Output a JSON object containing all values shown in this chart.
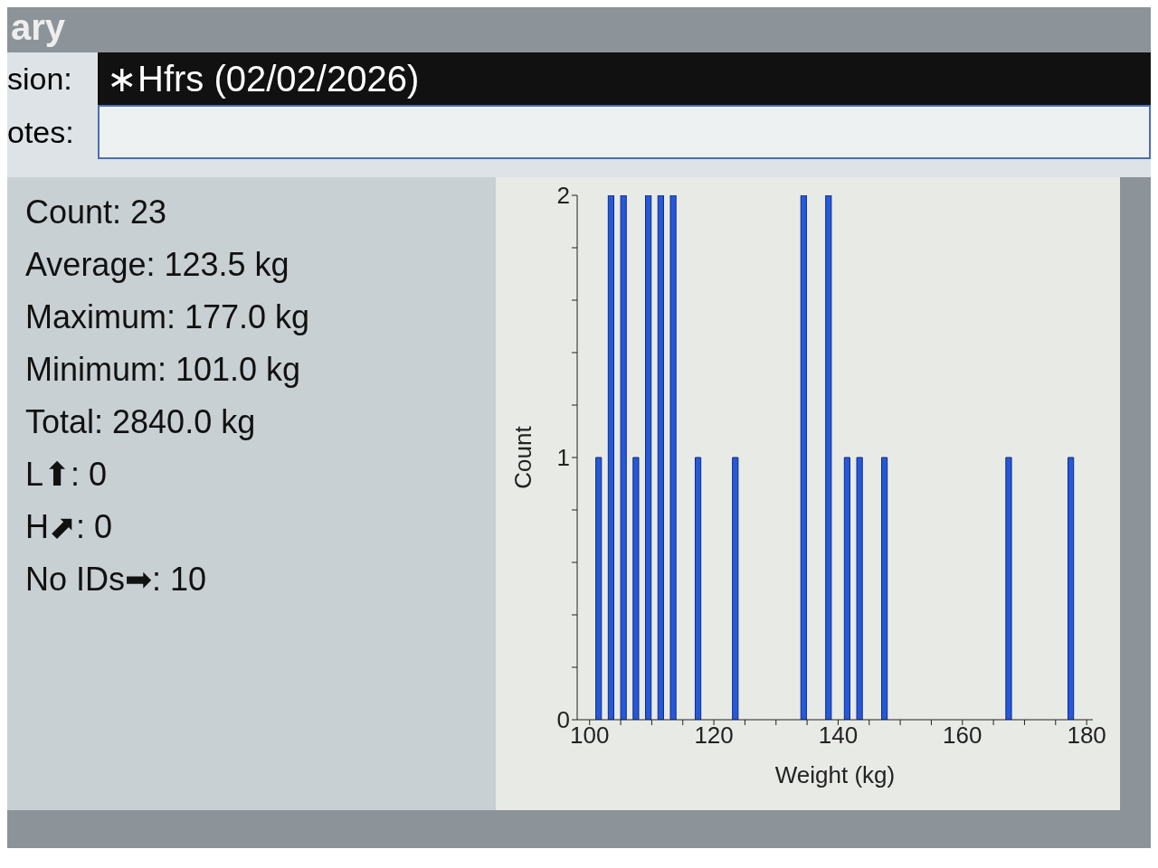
{
  "chart_data": {
    "type": "histogram",
    "title": "∗Hfrs (02/02/2026)",
    "xlabel": "Weight (kg)",
    "ylabel": "Count",
    "annotations": [
      "ary",
      "sion:",
      "otes:",
      "Count: 23",
      "Average: 123.5 kg",
      "Maximum: 177.0 kg",
      "Minimum: 101.0 kg",
      "Total: 2840.0 kg",
      "L⬆: 0",
      "H⬈: 0",
      "No IDs➡: 10"
    ],
    "bins": [
      100,
      101,
      102,
      103,
      104,
      105,
      106,
      107,
      108,
      109,
      110,
      111,
      112,
      113,
      114,
      115,
      116,
      117,
      118,
      119,
      120,
      121,
      122,
      123,
      124,
      125,
      126,
      127,
      128,
      129,
      130,
      131,
      132,
      133,
      134,
      135,
      136,
      137,
      138,
      139,
      140,
      141,
      142,
      143,
      144,
      145,
      146,
      147,
      148,
      149,
      150,
      151,
      152,
      153,
      154,
      155,
      156,
      157,
      158,
      159,
      160,
      161,
      162,
      163,
      164,
      165,
      166,
      167,
      168,
      169,
      170,
      171,
      172,
      173,
      174,
      175,
      176,
      177,
      178,
      179,
      180
    ],
    "values": [
      0,
      1,
      0,
      2,
      0,
      2,
      0,
      1,
      0,
      2,
      0,
      2,
      0,
      2,
      0,
      0,
      0,
      1,
      0,
      0,
      0,
      0,
      0,
      1,
      0,
      0,
      0,
      0,
      0,
      0,
      0,
      0,
      0,
      0,
      2,
      0,
      0,
      0,
      2,
      0,
      0,
      1,
      0,
      1,
      0,
      0,
      0,
      1,
      0,
      0,
      0,
      0,
      0,
      0,
      0,
      0,
      0,
      0,
      0,
      0,
      0,
      0,
      0,
      0,
      0,
      0,
      0,
      1,
      0,
      0,
      0,
      0,
      0,
      0,
      0,
      0,
      0,
      1,
      0,
      0
    ],
    "color": "#2659d9",
    "xlim": [
      98,
      181
    ],
    "xticks": [
      100,
      {
        "value": 105,
        "label": null
      },
      {
        "value": 110,
        "label": null
      },
      {
        "value": 115,
        "label": null
      },
      120,
      {
        "value": 125,
        "label": null
      },
      {
        "value": 130,
        "label": null
      },
      {
        "value": 135,
        "label": null
      },
      140,
      {
        "value": 145,
        "label": null
      },
      {
        "value": 150,
        "label": null
      },
      {
        "value": 155,
        "label": null
      },
      160,
      {
        "value": 165,
        "label": null
      },
      {
        "value": 170,
        "label": null
      },
      {
        "value": 175,
        "label": null
      },
      180
    ],
    "ylim": [
      0,
      2
    ],
    "yticks": [
      0,
      {
        "value": 0.2,
        "label": null
      },
      {
        "value": 0.4,
        "label": null
      },
      {
        "value": 0.6,
        "label": null
      },
      {
        "value": 0.8,
        "label": null
      },
      1,
      {
        "value": 1.2,
        "label": null
      },
      {
        "value": 1.4,
        "label": null
      },
      {
        "value": 1.6,
        "label": null
      },
      {
        "value": 1.8,
        "label": null
      },
      2
    ],
    "grid": false
  }
}
